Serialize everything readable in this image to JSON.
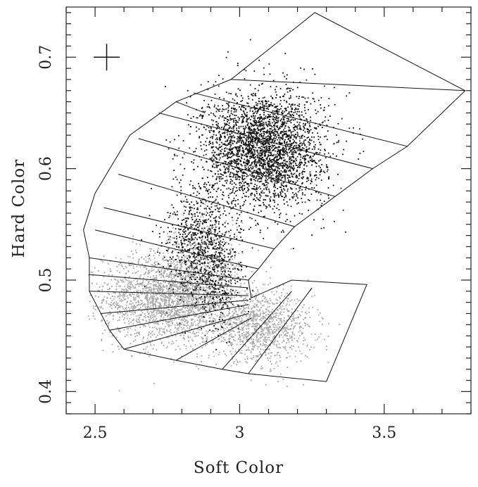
{
  "chart_data": {
    "type": "scatter",
    "title": "",
    "xlabel": "Soft Color",
    "ylabel": "Hard Color",
    "xlim": [
      2.4,
      3.8
    ],
    "ylim": [
      0.38,
      0.745
    ],
    "x_ticks": [
      2.5,
      3,
      3.5
    ],
    "x_tick_labels": [
      "2.5",
      "3",
      "3.5"
    ],
    "y_ticks": [
      0.4,
      0.5,
      0.6,
      0.7
    ],
    "y_tick_labels": [
      "0.4",
      "0.5",
      "0.6",
      "0.7"
    ],
    "grid": false,
    "legend": "none",
    "error_bar": {
      "x": 2.54,
      "y": 0.7,
      "dx": 0.045,
      "dy": 0.012
    },
    "series": [
      {
        "color": "#111111",
        "clusters": [
          {
            "cx": 3.08,
            "cy": 0.618,
            "sx": 0.105,
            "sy": 0.026,
            "n": 3000
          },
          {
            "cx": 2.87,
            "cy": 0.535,
            "sx": 0.065,
            "sy": 0.025,
            "n": 800
          },
          {
            "cx": 2.92,
            "cy": 0.49,
            "sx": 0.04,
            "sy": 0.018,
            "n": 200
          }
        ]
      },
      {
        "color": "#a8a8a8",
        "clusters": [
          {
            "cx": 2.76,
            "cy": 0.485,
            "sx": 0.115,
            "sy": 0.02,
            "n": 2400
          },
          {
            "cx": 3.07,
            "cy": 0.458,
            "sx": 0.09,
            "sy": 0.015,
            "n": 1100
          },
          {
            "cx": 2.88,
            "cy": 0.52,
            "sx": 0.06,
            "sy": 0.02,
            "n": 300
          }
        ]
      }
    ],
    "grid_outline": [
      [
        2.48,
        0.52
      ],
      [
        2.48,
        0.49
      ],
      [
        2.55,
        0.455
      ],
      [
        2.6,
        0.438
      ],
      [
        2.78,
        0.428
      ],
      [
        2.94,
        0.42
      ],
      [
        3.03,
        0.416
      ],
      [
        3.3,
        0.409
      ],
      [
        3.44,
        0.496
      ],
      [
        3.18,
        0.5
      ],
      [
        3.04,
        0.484
      ],
      [
        3.03,
        0.5
      ],
      [
        3.065,
        0.51
      ],
      [
        3.12,
        0.528
      ],
      [
        3.19,
        0.548
      ],
      [
        3.33,
        0.575
      ],
      [
        3.46,
        0.6
      ],
      [
        3.58,
        0.62
      ],
      [
        3.78,
        0.67
      ],
      [
        3.26,
        0.74
      ],
      [
        2.97,
        0.68
      ],
      [
        2.78,
        0.66
      ],
      [
        2.62,
        0.63
      ],
      [
        2.5,
        0.578
      ],
      [
        2.46,
        0.545
      ],
      [
        2.48,
        0.52
      ]
    ],
    "grid_inner_lines": [
      [
        [
          2.48,
          0.52
        ],
        [
          3.03,
          0.5
        ]
      ],
      [
        [
          2.48,
          0.49
        ],
        [
          3.03,
          0.486
        ]
      ],
      [
        [
          2.55,
          0.455
        ],
        [
          3.03,
          0.478
        ]
      ],
      [
        [
          2.6,
          0.438
        ],
        [
          3.03,
          0.47
        ]
      ],
      [
        [
          2.48,
          0.505
        ],
        [
          3.03,
          0.493
        ]
      ],
      [
        [
          2.52,
          0.47
        ],
        [
          3.03,
          0.482
        ]
      ],
      [
        [
          2.5,
          0.545
        ],
        [
          3.065,
          0.51
        ]
      ],
      [
        [
          2.53,
          0.565
        ],
        [
          3.12,
          0.528
        ]
      ],
      [
        [
          2.58,
          0.595
        ],
        [
          3.19,
          0.548
        ]
      ],
      [
        [
          2.65,
          0.627
        ],
        [
          3.33,
          0.575
        ]
      ],
      [
        [
          2.72,
          0.65
        ],
        [
          3.46,
          0.6
        ]
      ],
      [
        [
          2.84,
          0.668
        ],
        [
          3.58,
          0.62
        ]
      ],
      [
        [
          2.97,
          0.68
        ],
        [
          3.78,
          0.67
        ]
      ],
      [
        [
          2.78,
          0.66
        ],
        [
          2.88,
          0.65
        ]
      ],
      [
        [
          2.78,
          0.428
        ],
        [
          3.04,
          0.466
        ]
      ],
      [
        [
          2.94,
          0.42
        ],
        [
          3.18,
          0.49
        ]
      ],
      [
        [
          3.03,
          0.416
        ],
        [
          3.25,
          0.493
        ]
      ]
    ]
  }
}
